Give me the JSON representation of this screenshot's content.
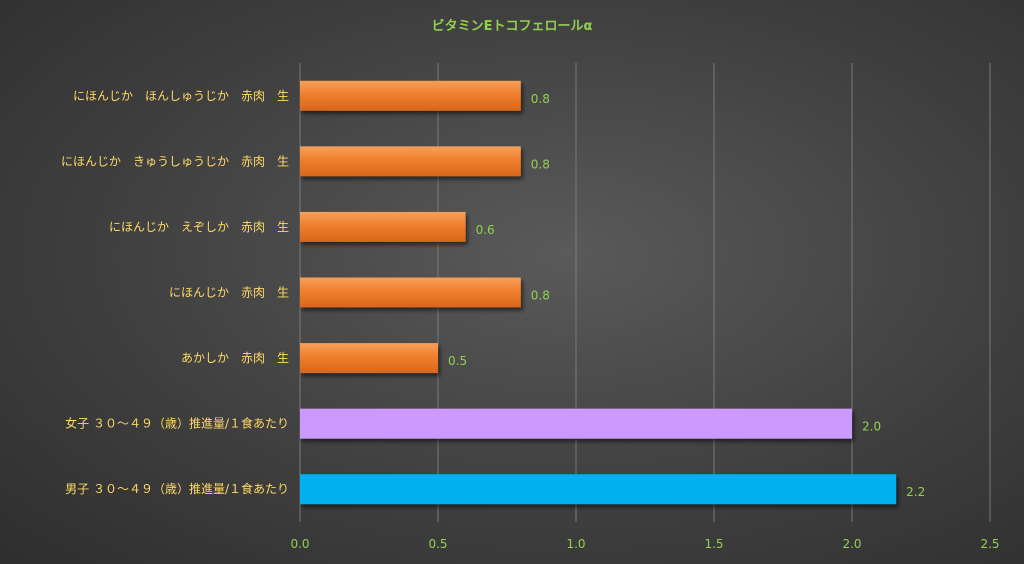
{
  "chart_data": {
    "type": "bar",
    "orientation": "horizontal",
    "title": "ビタミンEトコフェロールα",
    "xlabel": "",
    "ylabel": "",
    "xlim": [
      0,
      2.5
    ],
    "x_ticks": [
      "0.0",
      "0.5",
      "1.0",
      "1.5",
      "2.0",
      "2.5"
    ],
    "grid": "vertical",
    "legend": "none",
    "categories": [
      "にほんじか　ほんしゅうじか　赤肉　生",
      "にほんじか　きゅうしゅうじか　赤肉　生",
      "にほんじか　えぞしか　赤肉　生",
      "にほんじか　赤肉　生",
      "あかしか　赤肉　生",
      "女子 ３０～４９（歳）推進量/１食あたり",
      "男子 ３０～４９（歳）推進量/１食あたり"
    ],
    "values": [
      0.8,
      0.8,
      0.6,
      0.8,
      0.5,
      2.0,
      2.16
    ],
    "data_labels": [
      "0.8",
      "0.8",
      "0.6",
      "0.8",
      "0.5",
      "2.0",
      "2.2"
    ],
    "colors": {
      "food_bar": "#f07f2d",
      "female_bar": "#cc99ff",
      "male_bar": "#00b0f0",
      "category_text": "#ffd966",
      "value_text": "#92d050",
      "title_text": "#92d050",
      "grid": "#7a7a7a"
    },
    "bar_colors": [
      "#f07f2d",
      "#f07f2d",
      "#f07f2d",
      "#f07f2d",
      "#f07f2d",
      "#cc99ff",
      "#00b0f0"
    ]
  }
}
